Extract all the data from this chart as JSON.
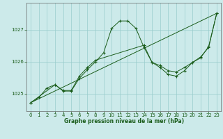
{
  "bg_color": "#cceaea",
  "grid_color": "#99cccc",
  "line_color": "#1a5c1a",
  "xlabel": "Graphe pression niveau de la mer (hPa)",
  "xlabel_color": "#1a5c1a",
  "tick_color": "#1a5c1a",
  "spine_color": "#666666",
  "xlim": [
    -0.5,
    23.5
  ],
  "ylim": [
    1024.45,
    1027.85
  ],
  "yticks": [
    1025,
    1026,
    1027
  ],
  "xticks": [
    0,
    1,
    2,
    3,
    4,
    5,
    6,
    7,
    8,
    9,
    10,
    11,
    12,
    13,
    14,
    15,
    16,
    17,
    18,
    19,
    20,
    21,
    22,
    23
  ],
  "series1_x": [
    0,
    1,
    2,
    3,
    4,
    5,
    6,
    7,
    8,
    9,
    10,
    11,
    12,
    13,
    14,
    15,
    16,
    17,
    18,
    19,
    20,
    21,
    22,
    23
  ],
  "series1_y": [
    1024.72,
    1024.88,
    1025.18,
    1025.28,
    1025.08,
    1025.08,
    1025.48,
    1025.75,
    1026.0,
    1026.28,
    1027.05,
    1027.28,
    1027.28,
    1027.05,
    1026.45,
    1025.98,
    1025.88,
    1025.72,
    1025.68,
    1025.82,
    1025.98,
    1026.12,
    1026.48,
    1027.52
  ],
  "series2_x": [
    0,
    3,
    4,
    5,
    6,
    7,
    8,
    14,
    15,
    16,
    17,
    18,
    19,
    20,
    21,
    22,
    23
  ],
  "series2_y": [
    1024.72,
    1025.28,
    1025.1,
    1025.1,
    1025.55,
    1025.82,
    1026.05,
    1026.52,
    1025.98,
    1025.82,
    1025.6,
    1025.55,
    1025.72,
    1025.98,
    1026.15,
    1026.45,
    1027.52
  ],
  "series3_x": [
    0,
    23
  ],
  "series3_y": [
    1024.72,
    1027.52
  ]
}
